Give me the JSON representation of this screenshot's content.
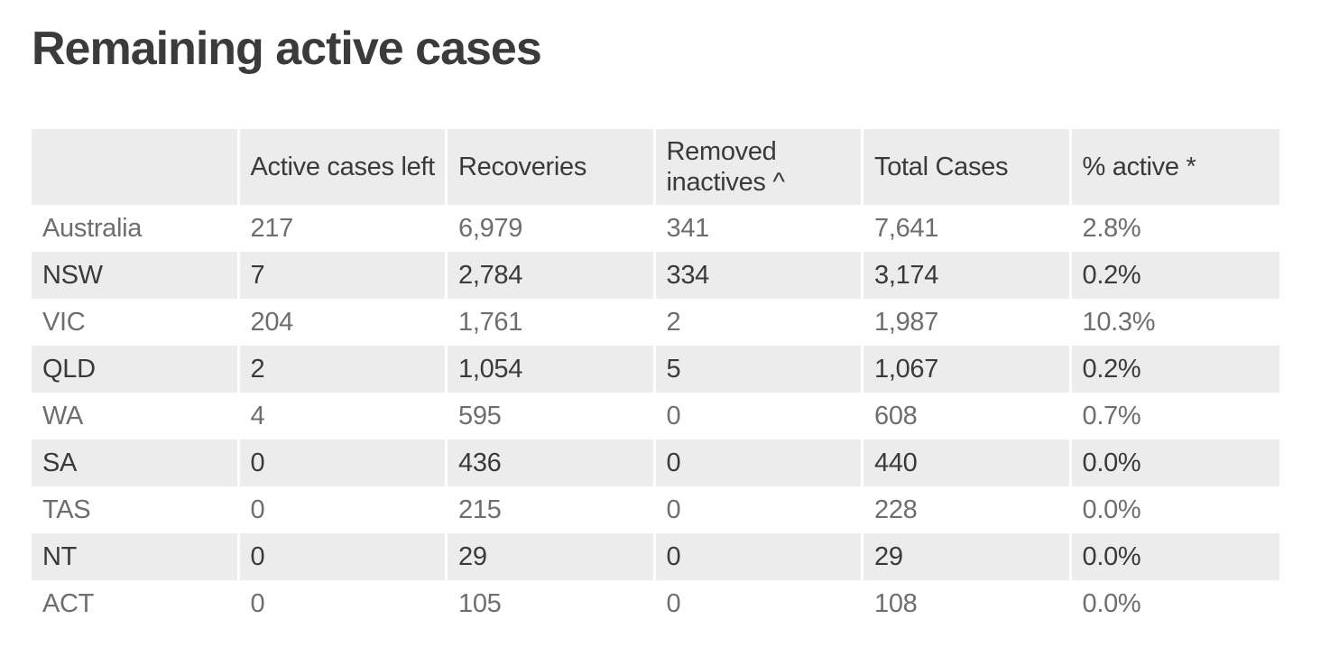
{
  "title": "Remaining active cases",
  "colors": {
    "background": "#ffffff",
    "header_bg": "#ececec",
    "stripe_bg": "#ececec",
    "title_color": "#3b3b3b",
    "text_dark": "#3a3a3a",
    "text_light": "#6e6e6e"
  },
  "chart_data": {
    "type": "table",
    "title": "Remaining active cases",
    "columns": [
      "",
      "Active cases left",
      "Recoveries",
      "Removed inactives ^",
      "Total Cases",
      "% active *"
    ],
    "rows": [
      [
        "Australia",
        "217",
        "6,979",
        "341",
        "7,641",
        "2.8%"
      ],
      [
        "NSW",
        "7",
        "2,784",
        "334",
        "3,174",
        "0.2%"
      ],
      [
        "VIC",
        "204",
        "1,761",
        "2",
        "1,987",
        "10.3%"
      ],
      [
        "QLD",
        "2",
        "1,054",
        "5",
        "1,067",
        "0.2%"
      ],
      [
        "WA",
        "4",
        "595",
        "0",
        "608",
        "0.7%"
      ],
      [
        "SA",
        "0",
        "436",
        "0",
        "440",
        "0.0%"
      ],
      [
        "TAS",
        "0",
        "215",
        "0",
        "228",
        "0.0%"
      ],
      [
        "NT",
        "0",
        "29",
        "0",
        "29",
        "0.0%"
      ],
      [
        "ACT",
        "0",
        "105",
        "0",
        "108",
        "0.0%"
      ]
    ],
    "layout_hints": {
      "header_shaded": true,
      "row_striping": "alternating; shaded rows use darker text, white rows lighter text",
      "column_count": 6,
      "first_column": "region labels",
      "grid": "no borders, 3px white gutters between columns"
    }
  }
}
